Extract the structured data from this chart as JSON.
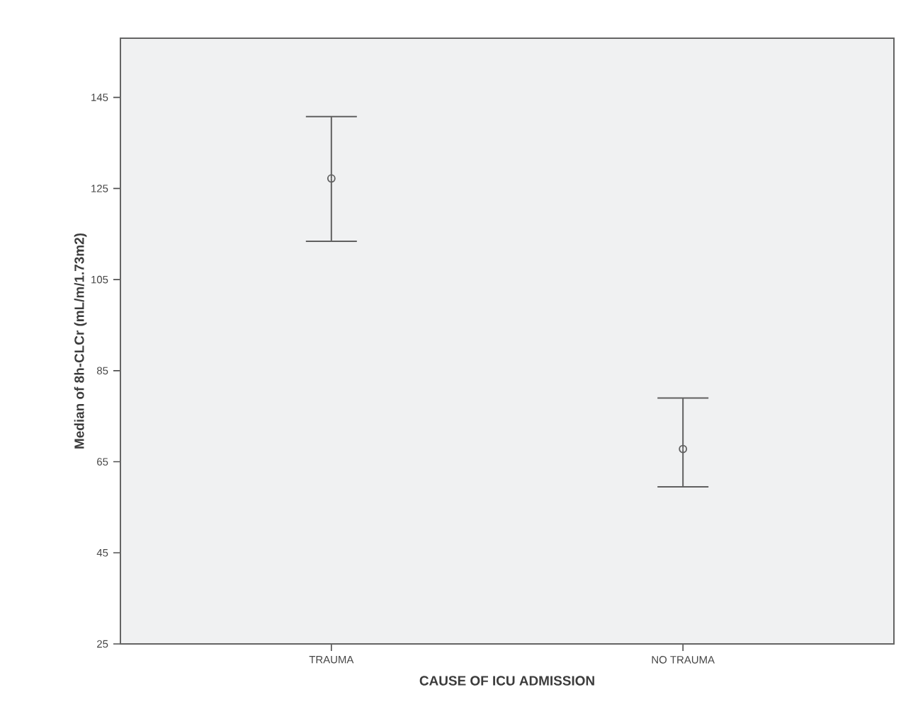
{
  "chart_data": {
    "type": "scatter",
    "xlabel": "CAUSE OF ICU ADMISSION",
    "ylabel": "Median of 8h-CLCr (mL/m/1.73m2)",
    "categories": [
      "TRAUMA",
      "NO TRAUMA"
    ],
    "values": [
      127.2,
      67.8
    ],
    "errors": [
      [
        113.4,
        140.8
      ],
      [
        59.5,
        79.0
      ]
    ],
    "color": "#606060",
    "marker": "circle",
    "ylim": [
      25,
      158
    ],
    "yticks": [
      25,
      45,
      65,
      85,
      105,
      125,
      145
    ],
    "grid": false
  }
}
